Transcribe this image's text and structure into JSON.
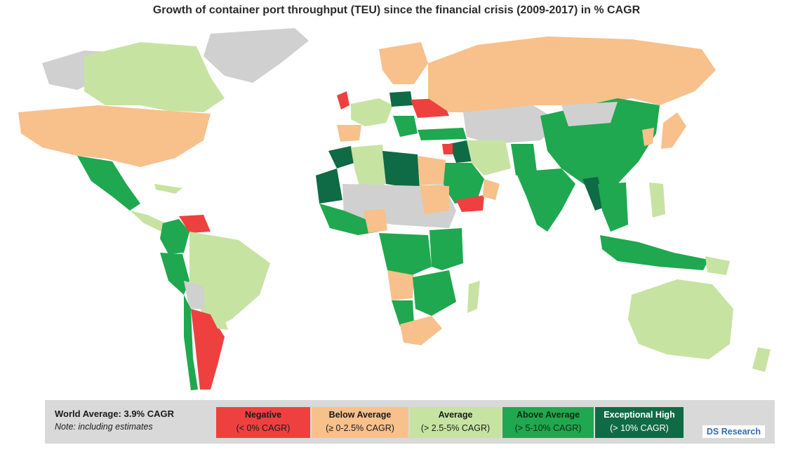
{
  "title": "Growth of container port throughput (TEU) since the financial crisis (2009-2017) in % CAGR",
  "legend": {
    "world_average": "World Average: 3.9% CAGR",
    "note": "Note: including estimates",
    "categories": [
      {
        "name": "Negative",
        "range": "(< 0% CAGR)",
        "color": "#ef4040",
        "text_color": "#1a1a1a"
      },
      {
        "name": "Below Average",
        "range": "(≥ 0-2.5% CAGR)",
        "color": "#f8c08b",
        "text_color": "#1a1a1a"
      },
      {
        "name": "Average",
        "range": "(> 2.5-5% CAGR)",
        "color": "#c7e3a2",
        "text_color": "#1a1a1a"
      },
      {
        "name": "Above Average",
        "range": "(> 5-10% CAGR)",
        "color": "#1fa84f",
        "text_color": "#0f2a14"
      },
      {
        "name": "Exceptional High",
        "range": "(> 10% CAGR)",
        "color": "#0e6b45",
        "text_color": "#ffffff"
      }
    ]
  },
  "credit": "DS Research",
  "colors": {
    "negative": "#ef4040",
    "below": "#f8c08b",
    "average": "#c7e3a2",
    "above": "#1fa84f",
    "exceptional": "#0e6b45",
    "nodata": "#d0d0d0"
  }
}
